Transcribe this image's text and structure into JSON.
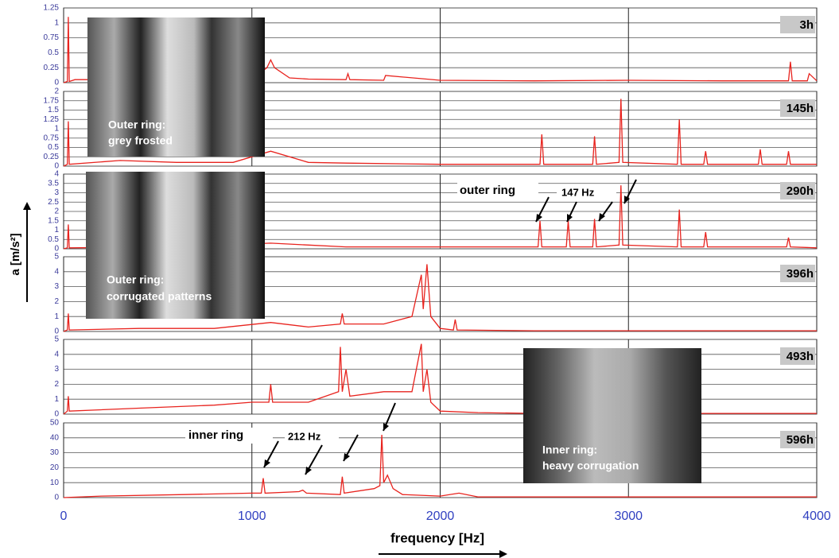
{
  "ylabel": "a  [m/s²]",
  "photos": [
    {
      "caption": [
        "Outer ring:",
        "grey frosted"
      ]
    },
    {
      "caption": [
        "Outer ring:",
        "corrugated patterns"
      ]
    },
    {
      "caption": [
        "Inner ring:",
        "heavy corrugation"
      ]
    }
  ],
  "chart_data": [
    {
      "type": "line",
      "label": "3h",
      "color": "#e8231e",
      "xlim": [
        0,
        4000
      ],
      "xticks": [
        0,
        1000,
        2000,
        3000,
        4000
      ],
      "ylim": [
        0,
        1.25
      ],
      "yticks": [
        0,
        0.25,
        0.5,
        0.75,
        1,
        1.25
      ],
      "x": [
        0,
        20,
        25,
        30,
        60,
        200,
        400,
        600,
        800,
        1000,
        1080,
        1100,
        1120,
        1200,
        1300,
        1500,
        1510,
        1520,
        1700,
        1710,
        2000,
        2500,
        3000,
        3500,
        3700,
        3850,
        3860,
        3870,
        3950,
        3960,
        4000
      ],
      "values": [
        0,
        0.02,
        1.1,
        0.02,
        0.05,
        0.05,
        0.06,
        0.04,
        0.05,
        0.06,
        0.25,
        0.38,
        0.25,
        0.08,
        0.06,
        0.05,
        0.15,
        0.05,
        0.04,
        0.12,
        0.04,
        0.03,
        0.04,
        0.03,
        0.03,
        0.03,
        0.35,
        0.03,
        0.03,
        0.15,
        0.03
      ]
    },
    {
      "type": "line",
      "label": "145h",
      "color": "#e8231e",
      "xlim": [
        0,
        4000
      ],
      "xticks": [
        0,
        1000,
        2000,
        3000,
        4000
      ],
      "ylim": [
        0,
        2
      ],
      "yticks": [
        0,
        0.25,
        0.5,
        0.75,
        1,
        1.25,
        1.5,
        1.75,
        2
      ],
      "x": [
        0,
        20,
        25,
        30,
        300,
        600,
        900,
        1100,
        1300,
        1500,
        2000,
        2530,
        2540,
        2550,
        2810,
        2820,
        2830,
        2950,
        2960,
        2970,
        3260,
        3270,
        3280,
        3400,
        3410,
        3420,
        3690,
        3700,
        3710,
        3840,
        3850,
        3860,
        4000
      ],
      "values": [
        0,
        0.05,
        1.2,
        0.05,
        0.15,
        0.1,
        0.1,
        0.4,
        0.1,
        0.08,
        0.05,
        0.05,
        0.85,
        0.05,
        0.05,
        0.8,
        0.05,
        0.1,
        1.8,
        0.1,
        0.05,
        1.25,
        0.05,
        0.05,
        0.4,
        0.05,
        0.05,
        0.45,
        0.05,
        0.05,
        0.4,
        0.05,
        0.05
      ]
    },
    {
      "type": "line",
      "label": "290h",
      "color": "#e8231e",
      "xlim": [
        0,
        4000
      ],
      "xticks": [
        0,
        1000,
        2000,
        3000,
        4000
      ],
      "ylim": [
        0,
        4
      ],
      "yticks": [
        0,
        0.5,
        1,
        1.5,
        2,
        2.5,
        3,
        3.5,
        4
      ],
      "annotations": [
        "outer ring",
        "147 Hz"
      ],
      "x": [
        0,
        20,
        25,
        30,
        600,
        1100,
        1500,
        2000,
        2520,
        2530,
        2540,
        2670,
        2680,
        2690,
        2810,
        2820,
        2830,
        2950,
        2960,
        2970,
        3260,
        3270,
        3280,
        3400,
        3410,
        3420,
        3840,
        3850,
        3860,
        4000
      ],
      "values": [
        0,
        0.05,
        1.3,
        0.05,
        0.1,
        0.3,
        0.1,
        0.1,
        0.1,
        1.5,
        0.1,
        0.1,
        1.5,
        0.1,
        0.1,
        1.6,
        0.1,
        0.2,
        3.4,
        0.2,
        0.1,
        2.1,
        0.1,
        0.1,
        0.9,
        0.1,
        0.1,
        0.6,
        0.1,
        0.05
      ]
    },
    {
      "type": "line",
      "label": "396h",
      "color": "#e8231e",
      "xlim": [
        0,
        4000
      ],
      "xticks": [
        0,
        1000,
        2000,
        3000,
        4000
      ],
      "ylim": [
        0,
        5
      ],
      "yticks": [
        0,
        1,
        2,
        3,
        4,
        5
      ],
      "x": [
        0,
        20,
        25,
        30,
        400,
        800,
        1100,
        1300,
        1470,
        1480,
        1490,
        1700,
        1850,
        1900,
        1910,
        1930,
        1950,
        2000,
        2070,
        2080,
        2090,
        2500,
        3000,
        3500,
        4000
      ],
      "values": [
        0,
        0.1,
        1.2,
        0.1,
        0.2,
        0.2,
        0.6,
        0.3,
        0.5,
        1.2,
        0.5,
        0.5,
        1,
        3.8,
        1.5,
        4.5,
        1,
        0.2,
        0.1,
        0.8,
        0.1,
        0.05,
        0.05,
        0.05,
        0.05
      ]
    },
    {
      "type": "line",
      "label": "493h",
      "color": "#e8231e",
      "xlim": [
        0,
        4000
      ],
      "xticks": [
        0,
        1000,
        2000,
        3000,
        4000
      ],
      "ylim": [
        0,
        5
      ],
      "yticks": [
        0,
        1,
        2,
        3,
        4,
        5
      ],
      "x": [
        0,
        20,
        25,
        30,
        400,
        800,
        1000,
        1090,
        1100,
        1110,
        1300,
        1460,
        1470,
        1480,
        1500,
        1520,
        1700,
        1850,
        1900,
        1910,
        1930,
        1950,
        2000,
        2200,
        2500,
        4000
      ],
      "values": [
        0,
        0.2,
        1.2,
        0.2,
        0.4,
        0.6,
        0.8,
        0.8,
        2,
        0.8,
        0.8,
        1.5,
        4.5,
        1.5,
        3,
        1.2,
        1.5,
        1.5,
        4.7,
        1.5,
        3,
        0.8,
        0.2,
        0.1,
        0.05,
        0.05
      ]
    },
    {
      "type": "line",
      "label": "596h",
      "color": "#e8231e",
      "xlim": [
        0,
        4000
      ],
      "xticks": [
        0,
        1000,
        2000,
        3000,
        4000
      ],
      "ylim": [
        0,
        50
      ],
      "yticks": [
        0,
        10,
        20,
        30,
        40,
        50
      ],
      "xlabel": "frequency  [Hz]",
      "annotations": [
        "inner ring",
        "212 Hz"
      ],
      "x": [
        0,
        200,
        640,
        1000,
        1050,
        1060,
        1070,
        1250,
        1270,
        1290,
        1470,
        1480,
        1490,
        1650,
        1680,
        1690,
        1700,
        1720,
        1750,
        1800,
        2000,
        2100,
        2200,
        4000
      ],
      "values": [
        0,
        1,
        2,
        3,
        3,
        13,
        3,
        4,
        5,
        3,
        2,
        14,
        3,
        6,
        8,
        42,
        10,
        15,
        6,
        2,
        1,
        3,
        0.5,
        0.5
      ]
    }
  ]
}
